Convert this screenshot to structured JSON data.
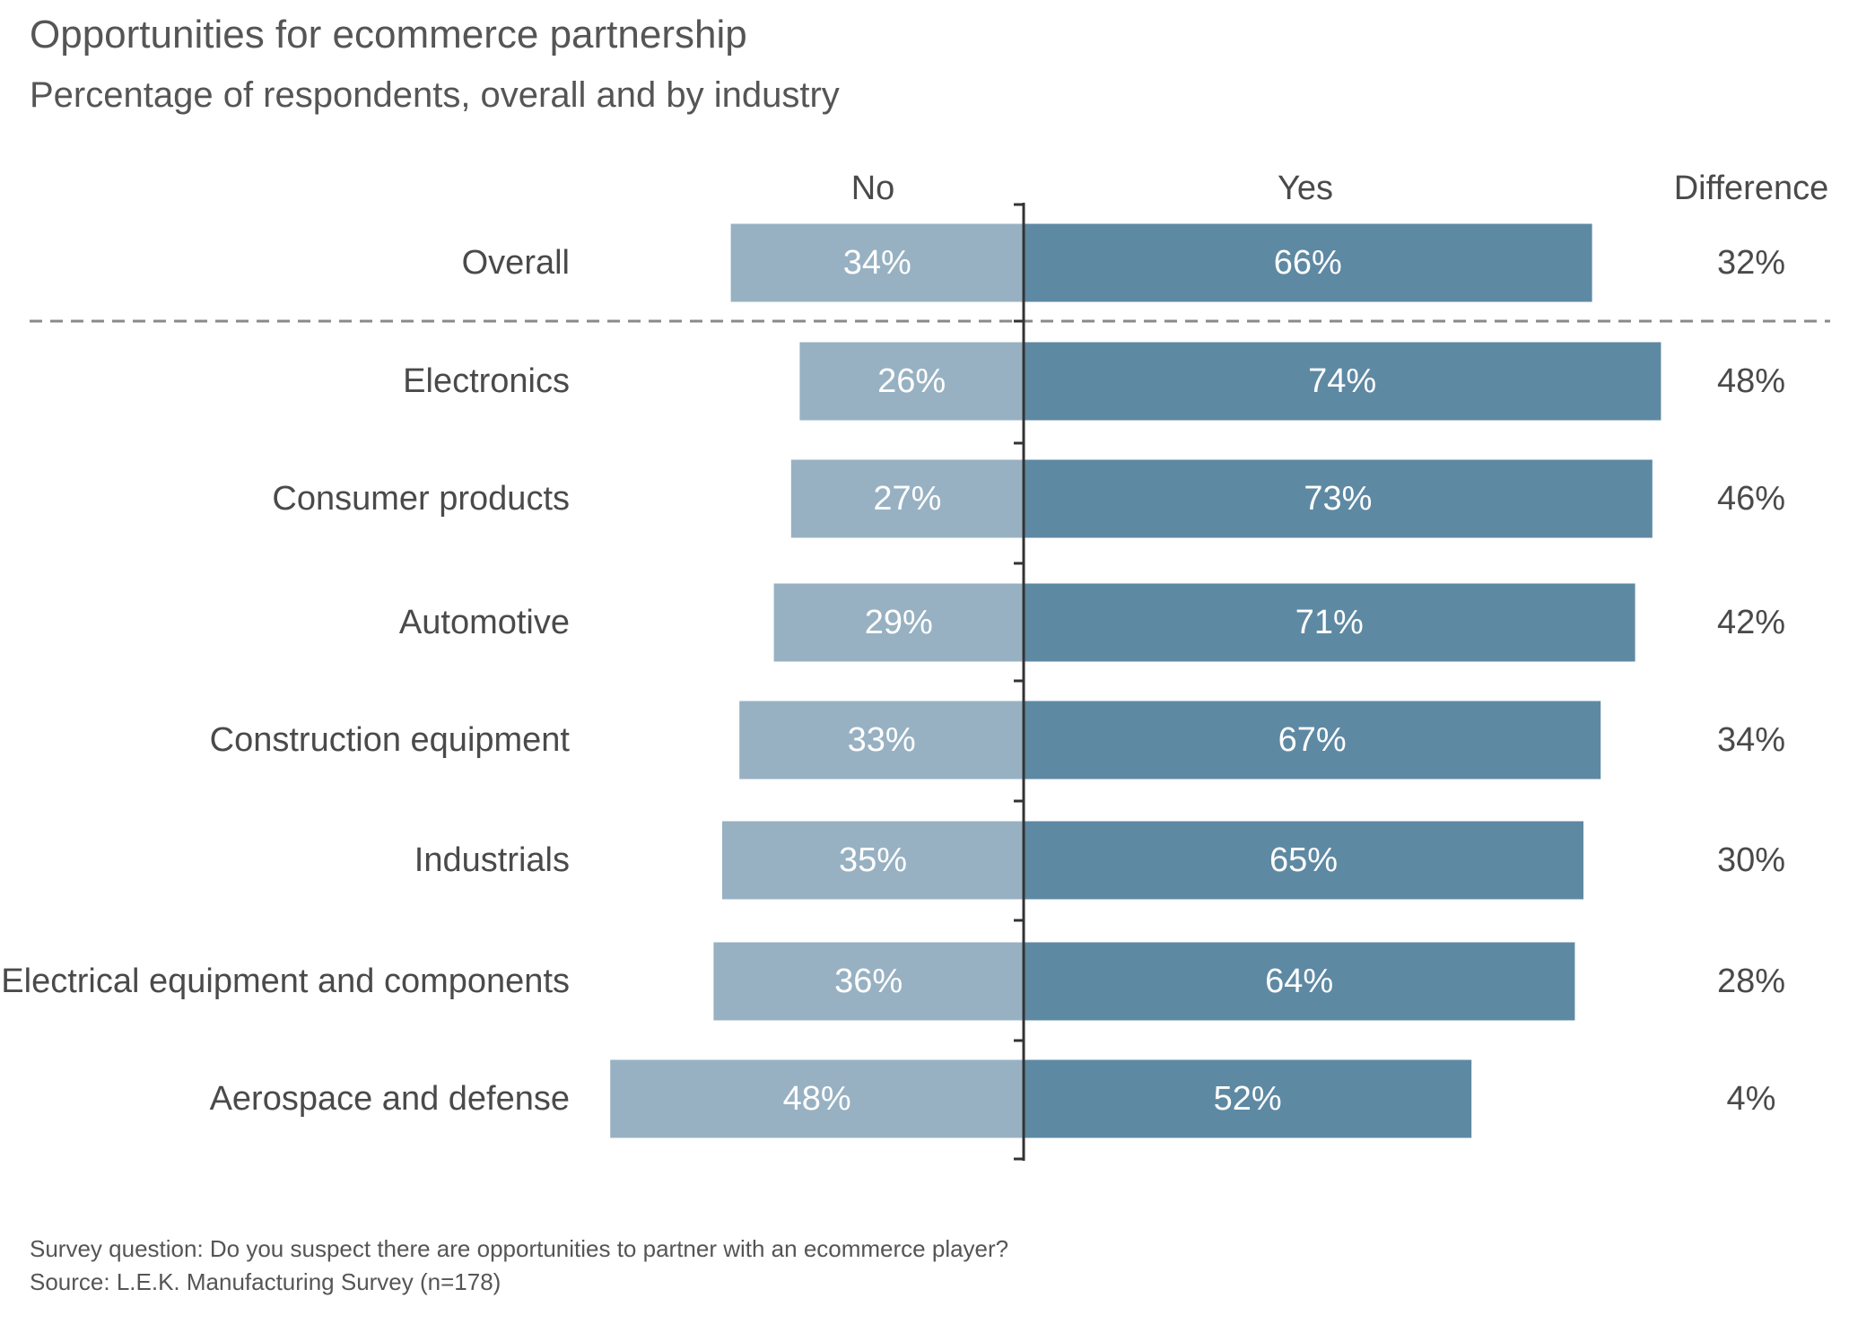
{
  "title": "Opportunities for ecommerce partnership",
  "subtitle": "Percentage of respondents, overall and by industry",
  "footnotes": {
    "question": "Survey question: Do you suspect there are opportunities to partner with an ecommerce player?",
    "source": "Source: L.E.K. Manufacturing Survey (n=178)"
  },
  "colors": {
    "no": "#97b1c2",
    "yes": "#5e89a3",
    "text": "#4a4a4a",
    "bar_label": "#ffffff",
    "divider": "#8a8a8a",
    "axis": "#333333"
  },
  "chart_data": {
    "type": "bar",
    "orientation": "horizontal-diverging",
    "column_headers": {
      "no": "No",
      "yes": "Yes",
      "difference": "Difference"
    },
    "categories": [
      "Overall",
      "Electronics",
      "Consumer products",
      "Automotive",
      "Construction equipment",
      "Industrials",
      "Electrical equipment and components",
      "Aerospace and defense"
    ],
    "series": [
      {
        "name": "No",
        "values": [
          34,
          26,
          27,
          29,
          33,
          35,
          36,
          48
        ]
      },
      {
        "name": "Yes",
        "values": [
          66,
          74,
          73,
          71,
          67,
          65,
          64,
          52
        ]
      }
    ],
    "difference": [
      32,
      48,
      46,
      42,
      34,
      30,
      28,
      4
    ],
    "unit": "%",
    "separator_after_index": 0
  }
}
